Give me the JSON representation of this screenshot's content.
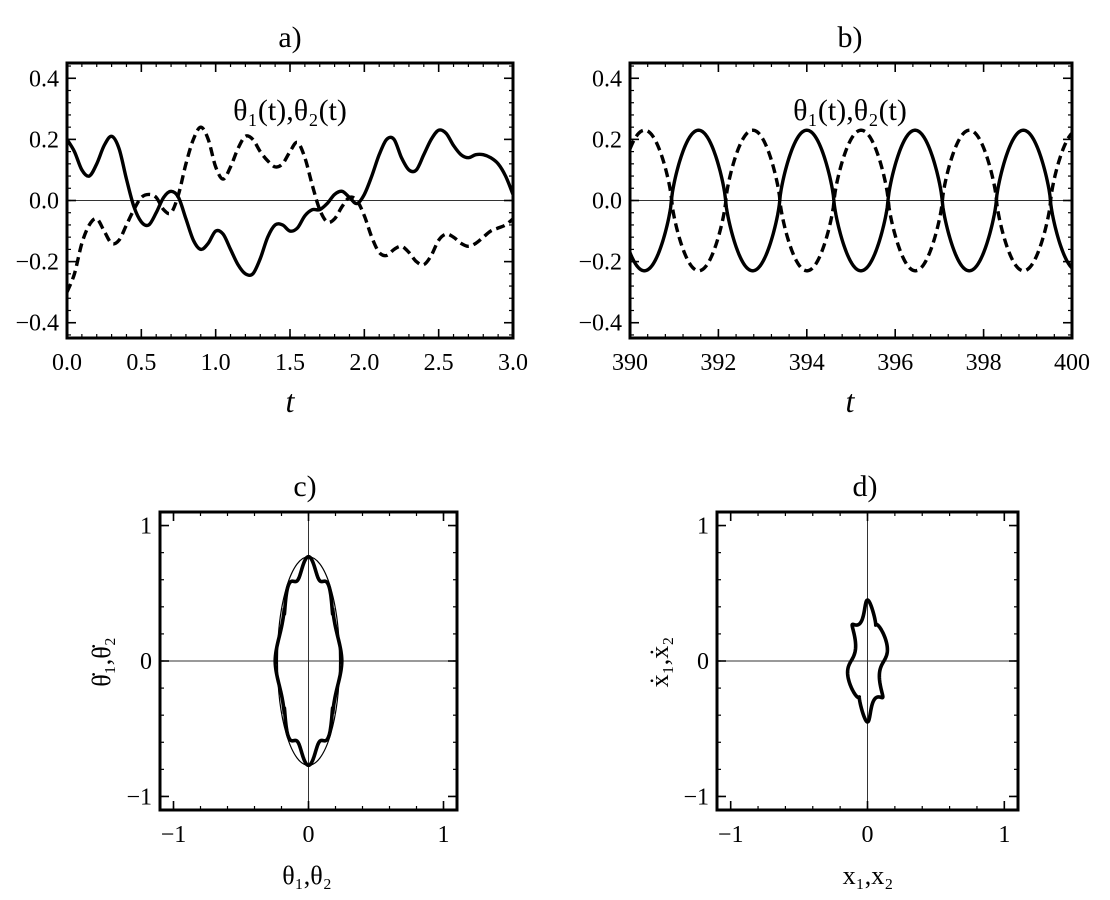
{
  "chart_data": [
    {
      "id": "a",
      "type": "line",
      "title": "a)",
      "annotation": "θ₁(t),θ₂(t)",
      "xlabel": "t",
      "ylabel": "",
      "xlim": [
        0,
        3
      ],
      "ylim": [
        -0.45,
        0.45
      ],
      "xticks": [
        0.0,
        0.5,
        1.0,
        1.5,
        2.0,
        2.5,
        3.0
      ],
      "xtick_labels": [
        "0.0",
        "0.5",
        "1.0",
        "1.5",
        "2.0",
        "2.5",
        "3.0"
      ],
      "yticks": [
        -0.4,
        -0.2,
        0.0,
        0.2,
        0.4
      ],
      "ytick_labels": [
        "−0.4",
        "−0.2",
        "0.0",
        "0.2",
        "0.4"
      ],
      "grid": false,
      "series": [
        {
          "style": "solid",
          "x": [
            0,
            0.05,
            0.1,
            0.15,
            0.2,
            0.25,
            0.3,
            0.35,
            0.4,
            0.45,
            0.5,
            0.55,
            0.6,
            0.65,
            0.7,
            0.75,
            0.8,
            0.85,
            0.9,
            0.95,
            1.0,
            1.05,
            1.1,
            1.15,
            1.2,
            1.25,
            1.3,
            1.35,
            1.4,
            1.45,
            1.5,
            1.55,
            1.6,
            1.65,
            1.7,
            1.75,
            1.8,
            1.85,
            1.9,
            1.95,
            2.0,
            2.05,
            2.1,
            2.15,
            2.2,
            2.25,
            2.3,
            2.35,
            2.4,
            2.45,
            2.5,
            2.55,
            2.6,
            2.65,
            2.7,
            2.75,
            2.8,
            2.85,
            2.9,
            2.95,
            3.0
          ],
          "values": [
            0.2,
            0.16,
            0.1,
            0.08,
            0.12,
            0.18,
            0.21,
            0.17,
            0.07,
            -0.02,
            -0.07,
            -0.08,
            -0.04,
            0.01,
            0.03,
            0.01,
            -0.06,
            -0.13,
            -0.16,
            -0.14,
            -0.1,
            -0.11,
            -0.16,
            -0.21,
            -0.24,
            -0.24,
            -0.19,
            -0.12,
            -0.08,
            -0.08,
            -0.1,
            -0.09,
            -0.05,
            -0.03,
            -0.03,
            -0.01,
            0.02,
            0.03,
            0.01,
            -0.01,
            0.02,
            0.08,
            0.15,
            0.2,
            0.2,
            0.14,
            0.1,
            0.1,
            0.15,
            0.2,
            0.23,
            0.22,
            0.18,
            0.15,
            0.14,
            0.15,
            0.15,
            0.14,
            0.12,
            0.08,
            0.02
          ]
        },
        {
          "style": "dashed",
          "x": [
            0,
            0.05,
            0.1,
            0.15,
            0.2,
            0.25,
            0.3,
            0.35,
            0.4,
            0.45,
            0.5,
            0.55,
            0.6,
            0.65,
            0.7,
            0.75,
            0.8,
            0.85,
            0.9,
            0.95,
            1.0,
            1.05,
            1.1,
            1.15,
            1.2,
            1.25,
            1.3,
            1.35,
            1.4,
            1.45,
            1.5,
            1.55,
            1.6,
            1.65,
            1.7,
            1.75,
            1.8,
            1.85,
            1.9,
            1.95,
            2.0,
            2.05,
            2.1,
            2.15,
            2.2,
            2.25,
            2.3,
            2.35,
            2.4,
            2.45,
            2.5,
            2.55,
            2.6,
            2.65,
            2.7,
            2.75,
            2.8,
            2.85,
            2.9,
            2.95,
            3.0
          ],
          "values": [
            -0.3,
            -0.24,
            -0.14,
            -0.08,
            -0.06,
            -0.1,
            -0.14,
            -0.13,
            -0.08,
            -0.03,
            0.01,
            0.02,
            0.01,
            -0.03,
            -0.04,
            0.02,
            0.12,
            0.2,
            0.24,
            0.2,
            0.11,
            0.07,
            0.11,
            0.17,
            0.21,
            0.2,
            0.16,
            0.13,
            0.11,
            0.12,
            0.16,
            0.19,
            0.14,
            0.05,
            -0.03,
            -0.07,
            -0.06,
            -0.02,
            0.01,
            0.0,
            -0.05,
            -0.12,
            -0.17,
            -0.18,
            -0.16,
            -0.15,
            -0.17,
            -0.2,
            -0.21,
            -0.18,
            -0.13,
            -0.11,
            -0.12,
            -0.14,
            -0.15,
            -0.14,
            -0.12,
            -0.1,
            -0.09,
            -0.08,
            -0.06
          ]
        }
      ]
    },
    {
      "id": "b",
      "type": "line",
      "title": "b)",
      "annotation": "θ₁(t),θ₂(t)",
      "xlabel": "t",
      "ylabel": "",
      "xlim": [
        390,
        400
      ],
      "ylim": [
        -0.45,
        0.45
      ],
      "xticks": [
        390,
        392,
        394,
        396,
        398,
        400
      ],
      "xtick_labels": [
        "390",
        "392",
        "394",
        "396",
        "398",
        "400"
      ],
      "yticks": [
        -0.4,
        -0.2,
        0.0,
        0.2,
        0.4
      ],
      "ytick_labels": [
        "−0.4",
        "−0.2",
        "0.0",
        "0.2",
        "0.4"
      ],
      "grid": false,
      "oscillation": {
        "amplitude": 0.23,
        "period": 2.45,
        "first_solid_peak_t": 391.55,
        "first_dashed_peak_t": 390.33
      },
      "series": [
        {
          "style": "solid"
        },
        {
          "style": "dashed"
        }
      ]
    },
    {
      "id": "c",
      "type": "line",
      "title": "c)",
      "xlabel": "θ₁,θ₂",
      "ylabel": "θ̇₁,θ̇₂",
      "xlim": [
        -1.1,
        1.1
      ],
      "ylim": [
        -1.1,
        1.1
      ],
      "xticks": [
        -1,
        0,
        1
      ],
      "xtick_labels": [
        "−1",
        "0",
        "1"
      ],
      "yticks": [
        -1,
        0,
        1
      ],
      "ytick_labels": [
        "−1",
        "0",
        "1"
      ],
      "grid": false,
      "series": [
        {
          "name": "",
          "style": "thin",
          "shape": "ellipse",
          "x_semi_axis": 0.23,
          "y_semi_axis": 0.77
        },
        {
          "name": "",
          "style": "thick",
          "shape": "wavy-closed",
          "x_range": [
            -0.23,
            0.24
          ],
          "y_range": [
            -0.77,
            0.77
          ]
        }
      ]
    },
    {
      "id": "d",
      "type": "line",
      "title": "d)",
      "xlabel": "x₁,x₂",
      "ylabel": "ẋ₁,ẋ₂",
      "xlim": [
        -1.1,
        1.1
      ],
      "ylim": [
        -1.1,
        1.1
      ],
      "xticks": [
        -1,
        0,
        1
      ],
      "xtick_labels": [
        "−1",
        "0",
        "1"
      ],
      "yticks": [
        -1,
        0,
        1
      ],
      "ytick_labels": [
        "−1",
        "0",
        "1"
      ],
      "grid": false,
      "series": [
        {
          "style": "thick",
          "shape": "wavy-closed",
          "x_range": [
            -0.14,
            0.14
          ],
          "y_range": [
            -0.46,
            0.46
          ]
        }
      ]
    }
  ]
}
